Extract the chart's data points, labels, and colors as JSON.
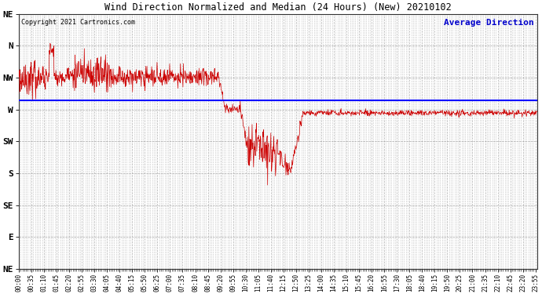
{
  "title": "Wind Direction Normalized and Median (24 Hours) (New) 20210102",
  "copyright_text": "Copyright 2021 Cartronics.com",
  "legend_text": "Average Direction",
  "background_color": "#ffffff",
  "plot_bg_color": "#ffffff",
  "grid_color": "#999999",
  "line_color": "#cc0000",
  "avg_line_color": "#0000ff",
  "title_color": "#000000",
  "copyright_color": "#000000",
  "legend_color": "#0000cc",
  "ytick_labels": [
    "NE",
    "N",
    "NW",
    "W",
    "SW",
    "S",
    "SE",
    "E",
    "NE"
  ],
  "ytick_values": [
    0,
    45,
    90,
    135,
    180,
    225,
    270,
    315,
    360
  ],
  "ylim_min": 0,
  "ylim_max": 360,
  "total_minutes": 1440,
  "avg_direction": 122,
  "tick_interval_minutes": 35,
  "minor_tick_minutes": 5,
  "figwidth": 6.9,
  "figheight": 3.75,
  "dpi": 100
}
